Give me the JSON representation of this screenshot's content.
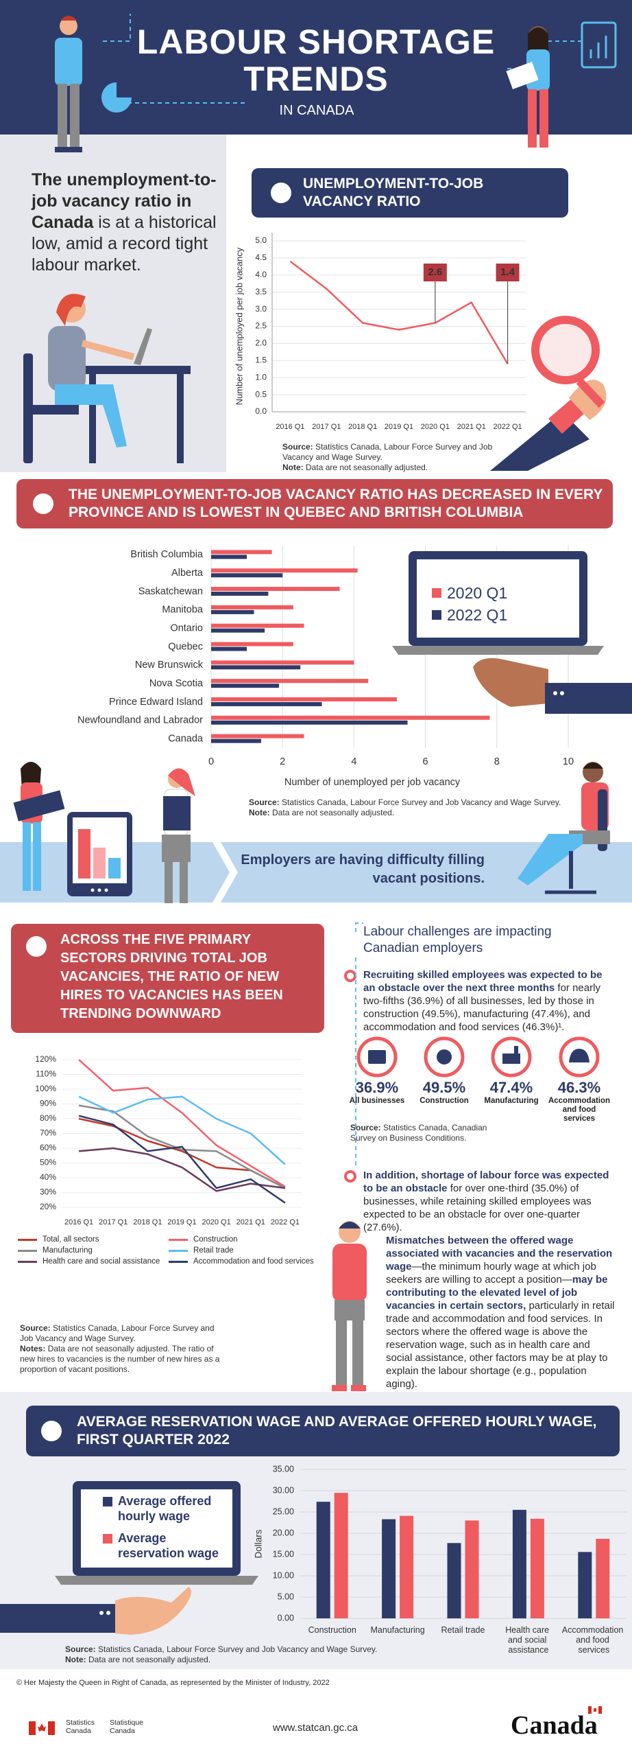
{
  "header": {
    "title_lines": [
      "LABOUR SHORTAGE",
      "TRENDS"
    ],
    "subtitle": "IN CANADA"
  },
  "intro": {
    "bold": "The unemployment-to-job vacancy ratio in Canada",
    "text": "is at a historical low, amid a record tight labour market."
  },
  "employers_banner": "Employers are having difficulty filling vacant positions.",
  "challenges": {
    "heading": "Labour challenges are impacting Canadian employers",
    "bullets": [
      {
        "bold": "Recruiting skilled employees was expected to be an obstacle over the next three months",
        "text": "for nearly two-fifths (36.9%) of all businesses, led by those in construction (49.5%), manufacturing (47.4%), and accommodation and food services (46.3%)¹."
      },
      {
        "bold": "In addition, shortage of labour force was expected to be an obstacle",
        "text": "for over one-third (35.0%) of businesses, while retaining skilled employees was expected to be an obstacle for over one-quarter (27.6%)."
      }
    ],
    "stats": [
      {
        "value": "36.9%",
        "label": "All businesses"
      },
      {
        "value": "49.5%",
        "label": "Construction"
      },
      {
        "value": "47.4%",
        "label": "Manufacturing"
      },
      {
        "value": "46.3%",
        "label": "Accommodation and food services"
      }
    ],
    "source": {
      "label": "Source:",
      "text": "Statistics Canada, Canadian Survey on Business Conditions."
    }
  },
  "mismatch": [
    {
      "text": "Mismatches between the offered wage associated with vacancies and the reservation wage",
      "bold": true
    },
    {
      "text": "—the minimum hourly wage at which job seekers are willing to accept a position—",
      "bold": false
    },
    {
      "text": "may be contributing to the elevated level of job vacancies in certain sectors,",
      "bold": true
    },
    {
      "text": "particularly in retail trade and accommodation and food services. In sectors where the offered wage is above the reservation wage, such as in health care and social assistance, other factors may be at play to explain the labour shortage (e.g., population aging).",
      "bold": false
    }
  ],
  "footer": {
    "copyright": "© Her Majesty the Queen in Right of Canada, as represented by the Minister of Industry, 2022",
    "agency_en": "Statistics Canada",
    "agency_fr": "Statistique Canada",
    "url": "www.statcan.gc.ca",
    "wordmark": "Canada"
  },
  "chart_data": [
    {
      "type": "line",
      "title": "UNEMPLOYMENT-TO-JOB VACANCY RATIO",
      "ylabel": "Number of unemployed per job vacancy",
      "categories": [
        "2016 Q1",
        "2017 Q1",
        "2018 Q1",
        "2019 Q1",
        "2020 Q1",
        "2021 Q1",
        "2022 Q1"
      ],
      "values": [
        4.4,
        3.6,
        2.6,
        2.4,
        2.6,
        3.2,
        1.4
      ],
      "color": "#ef5b5f",
      "ylim": [
        0,
        5
      ],
      "yticks": [
        {
          "value": 0,
          "label": "0.0"
        },
        0.5,
        {
          "value": 1,
          "label": "1.0"
        },
        1.5,
        {
          "value": 2,
          "label": "2.0"
        },
        2.5,
        {
          "value": 3,
          "label": "3.0"
        },
        3.5,
        {
          "value": 4,
          "label": "4.0"
        },
        4.5,
        {
          "value": 5,
          "label": "5.0"
        }
      ],
      "grid": true,
      "annotations": [
        {
          "x": "2020 Q1",
          "value": 2.6
        },
        {
          "x": "2022 Q1",
          "value": 1.4
        }
      ],
      "source": {
        "label": "Source:",
        "text": "Statistics Canada, Labour Force Survey and Job Vacancy and Wage Survey."
      },
      "note": {
        "label": "Note:",
        "text": "Data are not seasonally adjusted."
      }
    },
    {
      "type": "hbar",
      "title": "THE UNEMPLOYMENT-TO-JOB VACANCY RATIO HAS DECREASED IN EVERY PROVINCE AND IS LOWEST IN QUEBEC AND BRITISH COLUMBIA",
      "xlabel": "Number of unemployed per job vacancy",
      "categories": [
        "British Columbia",
        "Alberta",
        "Saskatchewan",
        "Manitoba",
        "Ontario",
        "Quebec",
        "New Brunswick",
        "Nova Scotia",
        "Prince Edward Island",
        "Newfoundland and Labrador",
        "Canada"
      ],
      "series": [
        {
          "name": "2020 Q1",
          "color": "#ef5b5f",
          "values": [
            1.7,
            4.1,
            3.6,
            2.3,
            2.6,
            2.3,
            4.0,
            4.4,
            5.2,
            7.8,
            2.6
          ]
        },
        {
          "name": "2022 Q1",
          "color": "#2e3b68",
          "values": [
            1.0,
            2.0,
            1.6,
            1.2,
            1.5,
            1.0,
            2.5,
            1.9,
            3.1,
            5.5,
            1.4
          ]
        }
      ],
      "xlim": [
        0,
        10
      ],
      "xticks": [
        0,
        2,
        4,
        6,
        8,
        10
      ],
      "grid": true,
      "source": {
        "label": "Source:",
        "text": "Statistics Canada, Labour Force Survey and Job Vacancy and Wage Survey."
      },
      "note": {
        "label": "Note:",
        "text": "Data are not seasonally adjusted."
      }
    },
    {
      "type": "line",
      "title": "ACROSS THE FIVE PRIMARY SECTORS DRIVING TOTAL JOB VACANCIES, THE RATIO OF NEW HIRES TO VACANCIES HAS BEEN TRENDING DOWNWARD",
      "categories": [
        "2016 Q1",
        "2017 Q1",
        "2018 Q1",
        "2019 Q1",
        "2020 Q1",
        "2021 Q1",
        "2022 Q1"
      ],
      "series": [
        {
          "name": "Total, all sectors",
          "color": "#c0392b",
          "values": [
            80,
            75,
            65,
            58,
            47,
            45,
            33
          ]
        },
        {
          "name": "Construction",
          "color": "#f2616b",
          "values": [
            120,
            99,
            101,
            84,
            62,
            48,
            34
          ]
        },
        {
          "name": "Manufacturing",
          "color": "#8a8a8a",
          "values": [
            89,
            85,
            68,
            59,
            58,
            45,
            33
          ]
        },
        {
          "name": "Retail trade",
          "color": "#5bbcf0",
          "values": [
            95,
            84,
            93,
            95,
            80,
            70,
            49
          ]
        },
        {
          "name": "Health care and social assistance",
          "color": "#6b3a5e",
          "values": [
            58,
            60,
            56,
            47,
            31,
            36,
            33
          ]
        },
        {
          "name": "Accommodation and food services",
          "color": "#2e3b68",
          "values": [
            82,
            76,
            58,
            61,
            33,
            39,
            23
          ]
        }
      ],
      "ylim": [
        20,
        120
      ],
      "yticks": [
        {
          "value": 20,
          "label": "20%"
        },
        {
          "value": 30,
          "label": "30%"
        },
        {
          "value": 40,
          "label": "40%"
        },
        {
          "value": 50,
          "label": "50%"
        },
        {
          "value": 60,
          "label": "60%"
        },
        {
          "value": 70,
          "label": "70%"
        },
        {
          "value": 80,
          "label": "80%"
        },
        {
          "value": 90,
          "label": "90%"
        },
        {
          "value": 100,
          "label": "100%"
        },
        {
          "value": 110,
          "label": "110%"
        },
        {
          "value": 120,
          "label": "120%"
        }
      ],
      "grid": true,
      "source": {
        "label": "Source:",
        "text": "Statistics Canada, Labour Force Survey and Job Vacancy and Wage Survey."
      },
      "note": {
        "label": "Notes:",
        "text": "Data are not seasonally adjusted. The ratio of new hires to vacancies is the number of new hires as a proportion of vacant positions."
      }
    },
    {
      "type": "bar",
      "title": "AVERAGE RESERVATION WAGE AND AVERAGE OFFERED HOURLY WAGE, FIRST QUARTER 2022",
      "ylabel": "Dollars",
      "categories": [
        "Construction",
        "Manufacturing",
        "Retail trade",
        "Health care and social assistance",
        "Accommodation and food services"
      ],
      "series": [
        {
          "name": "Average offered hourly wage",
          "color": "#2e3b68",
          "values": [
            27.4,
            23.3,
            17.7,
            25.5,
            15.6
          ]
        },
        {
          "name": "Average reservation wage",
          "color": "#ef5b5f",
          "values": [
            29.5,
            24.1,
            23.0,
            23.4,
            18.7
          ]
        }
      ],
      "ylim": [
        0,
        35
      ],
      "yticks": [
        {
          "value": 0,
          "label": "0.00"
        },
        {
          "value": 5,
          "label": "5.00"
        },
        {
          "value": 10,
          "label": "10.00"
        },
        {
          "value": 15,
          "label": "15.00"
        },
        {
          "value": 20,
          "label": "20.00"
        },
        {
          "value": 25,
          "label": "25.00"
        },
        {
          "value": 30,
          "label": "30.00"
        },
        {
          "value": 35,
          "label": "35.00"
        }
      ],
      "grid": true,
      "source": {
        "label": "Source:",
        "text": "Statistics Canada, Labour Force Survey and Job Vacancy and Wage Survey."
      },
      "note": {
        "label": "Note:",
        "text": "Data are not seasonally adjusted."
      }
    }
  ]
}
